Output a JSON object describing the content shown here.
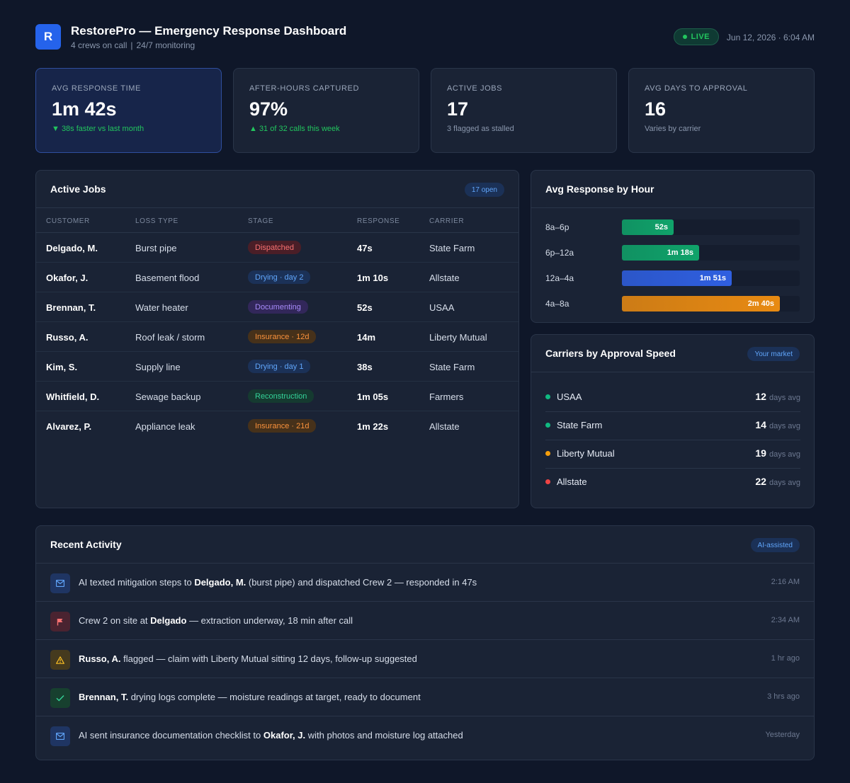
{
  "app": {
    "logo_letter": "R",
    "title": "RestorePro — Emergency Response Dashboard",
    "crews": "4 crews on call",
    "monitoring": "24/7 monitoring",
    "status": "LIVE",
    "datetime": "Jun 12, 2026 · 6:04 AM"
  },
  "kpis": [
    {
      "label": "AVG RESPONSE TIME",
      "value": "1m 42s",
      "sub": "▼ 38s faster vs last month"
    },
    {
      "label": "AFTER-HOURS CAPTURED",
      "value": "97%",
      "sub": "▲ 31 of 32 calls this week"
    },
    {
      "label": "ACTIVE JOBS",
      "value": "17",
      "sub": "3 flagged as stalled"
    },
    {
      "label": "AVG DAYS TO APPROVAL",
      "value": "16",
      "sub": "Varies by carrier"
    }
  ],
  "jobs": {
    "title": "Active Jobs",
    "badge": "17 open",
    "columns": [
      "CUSTOMER",
      "LOSS TYPE",
      "STAGE",
      "RESPONSE",
      "CARRIER"
    ],
    "rows": [
      {
        "customer": "Delgado, M.",
        "loss": "Burst pipe",
        "stage": "Dispatched",
        "response": "47s",
        "carrier": "State Farm"
      },
      {
        "customer": "Okafor, J.",
        "loss": "Basement flood",
        "stage": "Drying · day 2",
        "response": "1m 10s",
        "carrier": "Allstate"
      },
      {
        "customer": "Brennan, T.",
        "loss": "Water heater",
        "stage": "Documenting",
        "response": "52s",
        "carrier": "USAA"
      },
      {
        "customer": "Russo, A.",
        "loss": "Roof leak / storm",
        "stage": "Insurance · 12d",
        "response": "14m",
        "carrier": "Liberty Mutual"
      },
      {
        "customer": "Kim, S.",
        "loss": "Supply line",
        "stage": "Drying · day 1",
        "response": "38s",
        "carrier": "State Farm"
      },
      {
        "customer": "Whitfield, D.",
        "loss": "Sewage backup",
        "stage": "Reconstruction",
        "response": "1m 05s",
        "carrier": "Farmers"
      },
      {
        "customer": "Alvarez, P.",
        "loss": "Appliance leak",
        "stage": "Insurance · 21d",
        "response": "1m 22s",
        "carrier": "Allstate"
      }
    ]
  },
  "hours": {
    "title": "Avg Response by Hour",
    "rows": [
      {
        "label": "8a–6p",
        "value": "52s",
        "seconds": 52,
        "color": "#10a36a"
      },
      {
        "label": "6p–12a",
        "value": "1m 18s",
        "seconds": 78,
        "color": "#10a36a"
      },
      {
        "label": "12a–4a",
        "value": "1m 51s",
        "seconds": 111,
        "color": "#2f5fe0"
      },
      {
        "label": "4a–8a",
        "value": "2m 40s",
        "seconds": 160,
        "color": "#e88a12"
      }
    ]
  },
  "carriers": {
    "title": "Carriers by Approval Speed",
    "badge": "Your market",
    "unit": "days avg",
    "rows": [
      {
        "name": "USAA",
        "days": "12",
        "color": "#10b981"
      },
      {
        "name": "State Farm",
        "days": "14",
        "color": "#10b981"
      },
      {
        "name": "Liberty Mutual",
        "days": "19",
        "color": "#f59e0b"
      },
      {
        "name": "Allstate",
        "days": "22",
        "color": "#ef4444"
      }
    ]
  },
  "activity": {
    "title": "Recent Activity",
    "badge": "AI-assisted",
    "rows": [
      {
        "icon": "mail-icon",
        "pre": "AI texted mitigation steps to ",
        "bold": "Delgado, M.",
        "post": " (burst pipe) and dispatched Crew 2 — responded in 47s",
        "time": "2:16 AM"
      },
      {
        "icon": "flag-icon",
        "pre": "Crew 2 on site at ",
        "bold": "Delgado",
        "post": " — extraction underway, 18 min after call",
        "time": "2:34 AM"
      },
      {
        "icon": "warning-icon",
        "pre": "",
        "bold": "Russo, A.",
        "post": " flagged — claim with Liberty Mutual sitting 12 days, follow-up suggested",
        "time": "1 hr ago"
      },
      {
        "icon": "check-icon",
        "pre": "",
        "bold": "Brennan, T.",
        "post": " drying logs complete — moisture readings at target, ready to document",
        "time": "3 hrs ago"
      },
      {
        "icon": "mail-icon",
        "pre": "AI sent insurance documentation checklist to ",
        "bold": "Okafor, J.",
        "post": " with photos and moisture log attached",
        "time": "Yesterday"
      }
    ]
  }
}
